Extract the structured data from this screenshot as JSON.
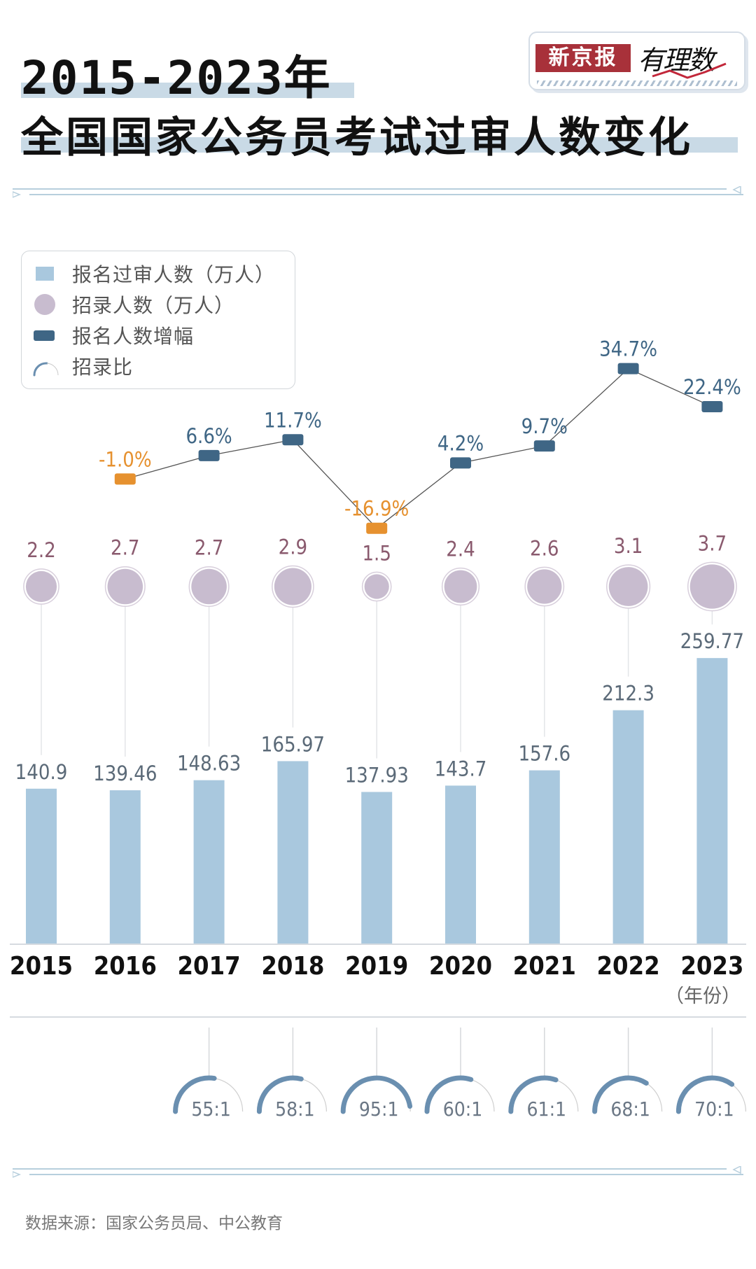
{
  "header": {
    "title_line1": "2015-2023年",
    "title_line2": "全国国家公务员考试过审人数变化",
    "logo_brand": "新京报",
    "logo_column": "有理数"
  },
  "legend": {
    "items": [
      {
        "icon": "bar-square-icon",
        "label": "报名过审人数（万人）"
      },
      {
        "icon": "circle-icon",
        "label": "招录人数（万人）"
      },
      {
        "icon": "rounded-rect-icon",
        "label": "报名人数增幅"
      },
      {
        "icon": "arc-gauge-icon",
        "label": "招录比"
      }
    ]
  },
  "colors": {
    "bar": "#a9c8de",
    "circle": "#c8bccf",
    "circle_text": "#8a5a6e",
    "growth_positive": "#3f6685",
    "growth_negative": "#e6912f",
    "gauge": "#6a8fb0",
    "title_highlight": "#c9dae6"
  },
  "chart_data": {
    "type": "bar",
    "title": "2015-2023年全国国家公务员考试过审人数变化",
    "xlabel": "（年份）",
    "ylabel": "",
    "categories": [
      "2015",
      "2016",
      "2017",
      "2018",
      "2019",
      "2020",
      "2021",
      "2022",
      "2023"
    ],
    "series": [
      {
        "name": "报名过审人数（万人）",
        "type": "bar",
        "values": [
          140.9,
          139.46,
          148.63,
          165.97,
          137.93,
          143.7,
          157.6,
          212.3,
          259.77
        ],
        "labels": [
          "140.9",
          "139.46",
          "148.63",
          "165.97",
          "137.93",
          "143.7",
          "157.6",
          "212.3",
          "259.77"
        ]
      },
      {
        "name": "招录人数（万人）",
        "type": "bubble",
        "values": [
          2.2,
          2.7,
          2.7,
          2.9,
          1.5,
          2.4,
          2.6,
          3.1,
          3.7
        ],
        "labels": [
          "2.2",
          "2.7",
          "2.7",
          "2.9",
          "1.5",
          "2.4",
          "2.6",
          "3.1",
          "3.7"
        ]
      },
      {
        "name": "报名人数增幅",
        "type": "line",
        "unit": "%",
        "values": [
          null,
          -1.0,
          6.6,
          11.7,
          -16.9,
          4.2,
          9.7,
          34.7,
          22.4
        ],
        "labels": [
          null,
          "-1.0%",
          "6.6%",
          "11.7%",
          "-16.9%",
          "4.2%",
          "9.7%",
          "34.7%",
          "22.4%"
        ]
      },
      {
        "name": "招录比",
        "type": "gauge",
        "values": [
          null,
          null,
          55,
          58,
          95,
          60,
          61,
          68,
          70
        ],
        "labels": [
          null,
          null,
          "55:1",
          "58:1",
          "95:1",
          "60:1",
          "61:1",
          "68:1",
          "70:1"
        ],
        "max": 100
      }
    ],
    "ylim": [
      0,
      280
    ],
    "grid": false,
    "legend_position": "top-left"
  },
  "footer": {
    "source": "数据来源：国家公务员局、中公教育"
  }
}
